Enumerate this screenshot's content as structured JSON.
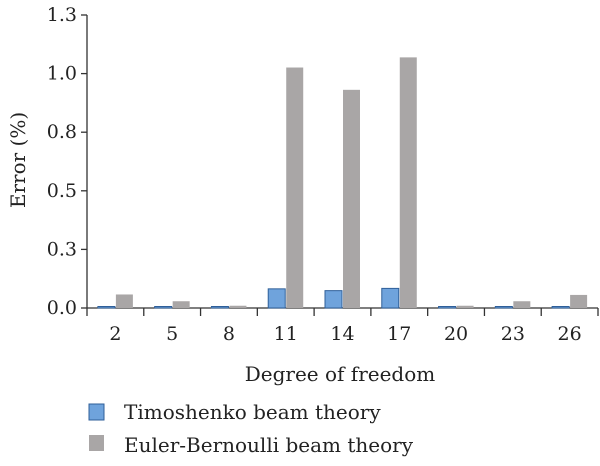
{
  "chart_data": {
    "type": "bar",
    "title": "",
    "xlabel": "Degree of freedom",
    "ylabel": "Error (%)",
    "ylim": [
      0,
      1.3
    ],
    "yticks": [
      "0.0",
      "0.3",
      "0.5",
      "0.8",
      "1.0",
      "1.3"
    ],
    "ytick_values": [
      0,
      0.26,
      0.52,
      0.78,
      1.04,
      1.3
    ],
    "categories": [
      "2",
      "5",
      "8",
      "11",
      "14",
      "17",
      "20",
      "23",
      "26"
    ],
    "grid": false,
    "legend_position": "bottom",
    "series": [
      {
        "name": "Timoshenko beam theory",
        "color": "#6fa3dc",
        "stroke": "#2f5f99",
        "values": [
          0.003,
          0.002,
          0.002,
          0.085,
          0.077,
          0.087,
          0.002,
          0.002,
          0.003
        ]
      },
      {
        "name": "Euler-Bernoulli beam theory",
        "color": "#a9a6a6",
        "stroke": "#a9a6a6",
        "values": [
          0.06,
          0.03,
          0.01,
          1.067,
          0.968,
          1.112,
          0.01,
          0.03,
          0.058
        ]
      }
    ]
  }
}
